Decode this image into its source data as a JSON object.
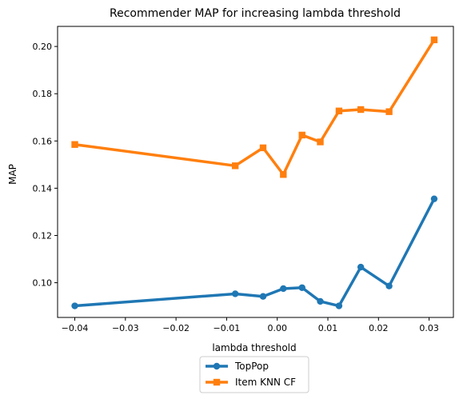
{
  "chart_data": {
    "type": "line",
    "title": "Recommender MAP for increasing lambda threshold",
    "xlabel": "lambda threshold",
    "ylabel": "MAP",
    "xlim": [
      -0.0434,
      0.0348
    ],
    "ylim": [
      0.0853,
      0.2085
    ],
    "xticks": [
      -0.04,
      -0.03,
      -0.02,
      -0.01,
      0.0,
      0.01,
      0.02,
      0.03
    ],
    "xtick_labels": [
      "−0.04",
      "−0.03",
      "−0.02",
      "−0.01",
      "0.00",
      "0.01",
      "0.02",
      "0.03"
    ],
    "yticks": [
      0.1,
      0.12,
      0.14,
      0.16,
      0.18,
      0.2
    ],
    "ytick_labels": [
      "0.10",
      "0.12",
      "0.14",
      "0.16",
      "0.18",
      "0.20"
    ],
    "grid": false,
    "legend_position": "bottom-center-outside",
    "series": [
      {
        "name": "TopPop",
        "color": "#1f77b4",
        "marker": "circle",
        "points": [
          [
            -0.04,
            0.0902
          ],
          [
            -0.0083,
            0.0953
          ],
          [
            -0.0028,
            0.0942
          ],
          [
            0.0012,
            0.0975
          ],
          [
            0.0049,
            0.0979
          ],
          [
            0.0085,
            0.0921
          ],
          [
            0.0122,
            0.0902
          ],
          [
            0.0165,
            0.1066
          ],
          [
            0.0221,
            0.0986
          ],
          [
            0.031,
            0.1355
          ]
        ]
      },
      {
        "name": "Item KNN CF",
        "color": "#ff7f0e",
        "marker": "square",
        "points": [
          [
            -0.04,
            0.1585
          ],
          [
            -0.0083,
            0.1495
          ],
          [
            -0.0028,
            0.1571
          ],
          [
            0.0012,
            0.1458
          ],
          [
            0.0049,
            0.1625
          ],
          [
            0.0085,
            0.1596
          ],
          [
            0.0122,
            0.1727
          ],
          [
            0.0165,
            0.1733
          ],
          [
            0.0221,
            0.1724
          ],
          [
            0.031,
            0.2028
          ]
        ]
      }
    ]
  }
}
